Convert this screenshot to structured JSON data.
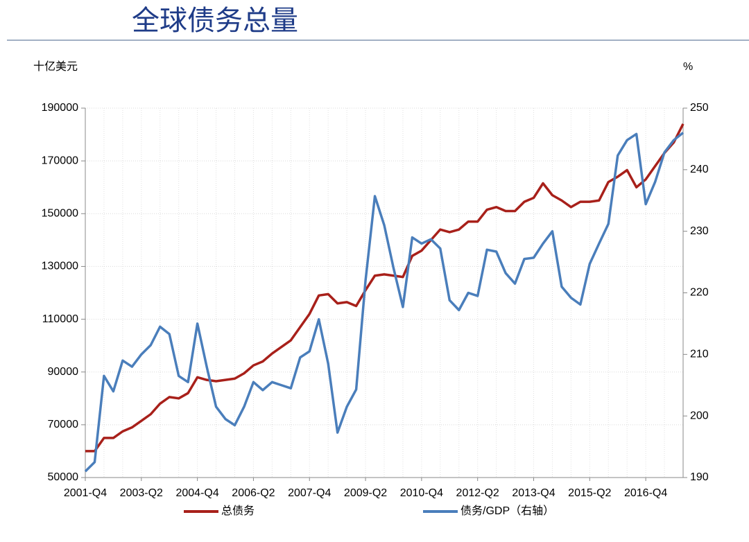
{
  "chart_data": {
    "type": "line",
    "title": "全球债务总量",
    "y_label": "十亿美元",
    "y2_label": "%",
    "categories": [
      "2001-Q4",
      null,
      null,
      null,
      null,
      null,
      "2003-Q2",
      null,
      null,
      null,
      null,
      null,
      "2004-Q4",
      null,
      null,
      null,
      null,
      null,
      "2006-Q2",
      null,
      null,
      null,
      null,
      null,
      "2007-Q4",
      null,
      null,
      null,
      null,
      null,
      "2009-Q2",
      null,
      null,
      null,
      null,
      null,
      "2010-Q4",
      null,
      null,
      null,
      null,
      null,
      "2012-Q2",
      null,
      null,
      null,
      null,
      null,
      "2013-Q4",
      null,
      null,
      null,
      null,
      null,
      "2015-Q2",
      null,
      null,
      null,
      null,
      null,
      "2016-Q4",
      null,
      null,
      null,
      null
    ],
    "series": [
      {
        "name": "总债务",
        "color": "#a8201a",
        "values": [
          60000,
          60000,
          65000,
          65000,
          67500,
          69000,
          71500,
          74000,
          78000,
          80500,
          80000,
          82000,
          88000,
          87000,
          86500,
          87000,
          87500,
          89500,
          92500,
          94000,
          97000,
          99500,
          102000,
          107000,
          112000,
          119000,
          119500,
          116000,
          116500,
          115000,
          121000,
          126500,
          127000,
          126500,
          126000,
          134000,
          136000,
          140000,
          144000,
          143000,
          144000,
          147000,
          147000,
          151500,
          152500,
          151000,
          151000,
          154500,
          156000,
          161500,
          157000,
          155000,
          152500,
          154500,
          154500,
          155000,
          162000,
          164000,
          166500,
          160000,
          163000,
          168000,
          173000,
          177000,
          184000
        ]
      },
      {
        "name": "债务/GDP（右轴）",
        "color": "#4a7ebb",
        "axis": "y2",
        "values": [
          191,
          192.5,
          206.5,
          204,
          209,
          208,
          210,
          211.5,
          214.5,
          213.3,
          206.5,
          205.5,
          215,
          208,
          201.5,
          199.5,
          198.5,
          201.5,
          205.5,
          204.2,
          205.5,
          205,
          204.5,
          209.5,
          210.5,
          215.7,
          208.5,
          197.3,
          201.5,
          204.3,
          222,
          235.7,
          231,
          224,
          217.7,
          229,
          228,
          228.7,
          227.2,
          218.8,
          217.2,
          220,
          219.5,
          227,
          226.7,
          223.2,
          221.5,
          225.5,
          225.7,
          228,
          230,
          221,
          219.2,
          218.1,
          224.7,
          228,
          231.2,
          242.3,
          244.8,
          245.8,
          234.4,
          238,
          242.8,
          244.8,
          246
        ]
      }
    ],
    "ylim": [
      50000,
      190000
    ],
    "yticks": [
      50000,
      70000,
      90000,
      110000,
      130000,
      150000,
      170000,
      190000
    ],
    "y2lim": [
      190,
      250
    ],
    "y2ticks": [
      190,
      200,
      210,
      220,
      230,
      240,
      250
    ],
    "grid": true,
    "legend": "bottom"
  }
}
